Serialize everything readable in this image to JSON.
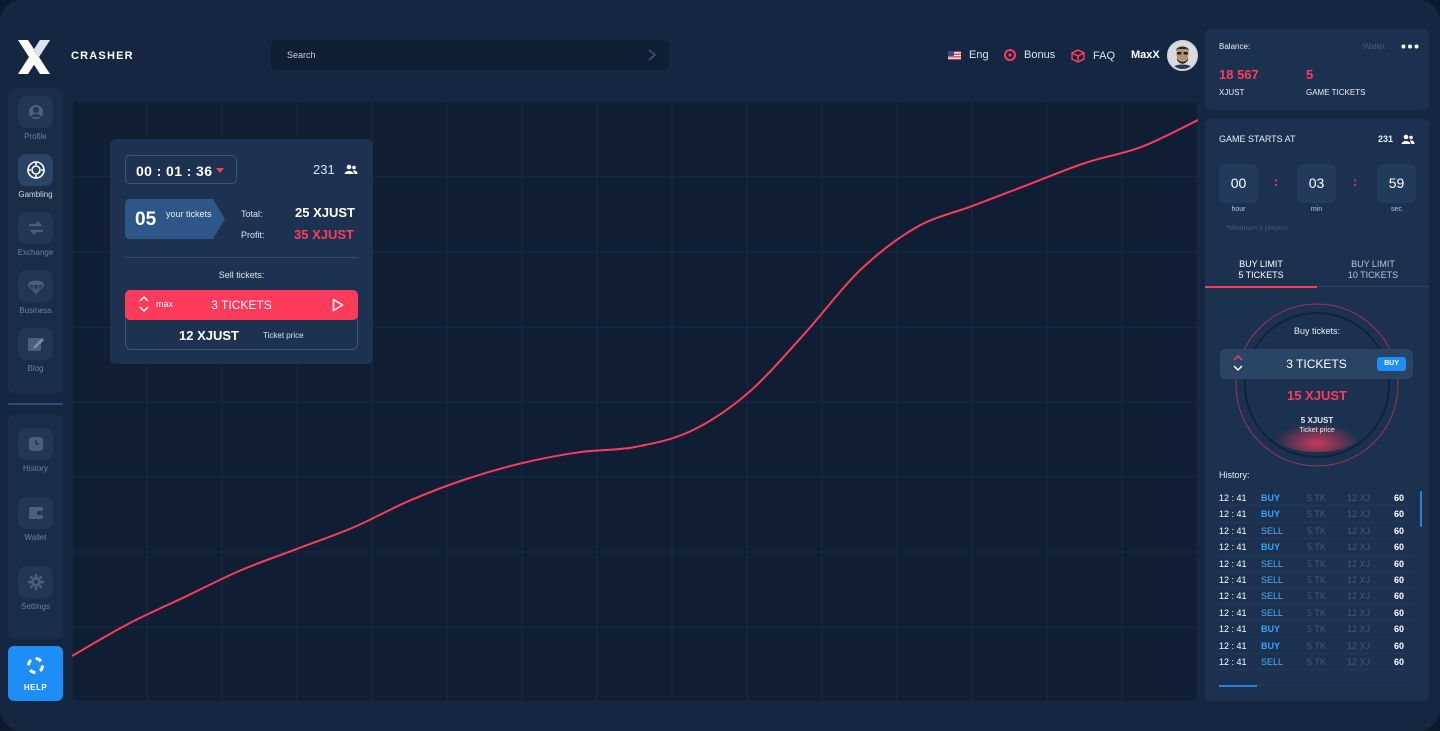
{
  "app": {
    "brand": "CRASHER",
    "accent": "#ff3b5c",
    "blue": "#1e8ef7"
  },
  "sidebar": {
    "items": [
      {
        "label": "Profile",
        "icon": "user-icon"
      },
      {
        "label": "Gambling",
        "icon": "poker-chip-icon"
      },
      {
        "label": "Exchange",
        "icon": "exchange-icon"
      },
      {
        "label": "Business",
        "icon": "parachute-icon"
      },
      {
        "label": "Blog",
        "icon": "edit-icon"
      },
      {
        "label": "History",
        "icon": "clock-icon"
      },
      {
        "label": "Wallet",
        "icon": "wallet-icon"
      },
      {
        "label": "Settings",
        "icon": "gear-icon"
      }
    ],
    "active": "Gambling",
    "help_label": "HELP"
  },
  "header": {
    "search_placeholder": "Search",
    "lang": "Eng",
    "bonus": "Bonus",
    "faq": "FAQ",
    "username": "MaxX"
  },
  "ticket_card": {
    "timer": "00 : 01 : 36",
    "players": "231",
    "your_tickets_count": "05",
    "your_tickets_label": "your tickets",
    "total_label": "Total:",
    "total_value": "25 XJUST",
    "profit_label": "Profit:",
    "profit_value": "35 XJUST",
    "sell_label": "Sell tickets:",
    "max_label": "max",
    "sell_quantity": "3 TICKETS",
    "price": "12 XJUST",
    "price_label": "Ticket price"
  },
  "balance": {
    "label": "Balance:",
    "wallet_link": "Wallet",
    "xjust_value": "18 567",
    "xjust_label": "XJUST",
    "tickets_value": "5",
    "tickets_label": "GAME TICKETS"
  },
  "game": {
    "starts_label": "GAME STARTS AT",
    "players": "231",
    "hour": "00",
    "hour_label": "hour",
    "min": "03",
    "min_label": "min",
    "sec": "59",
    "sec_label": "sec",
    "min_players": "*Minimum 8 players",
    "tab1_line1": "BUY LIMIT",
    "tab1_line2": "5 TICKETS",
    "tab2_line1": "BUY LIMIT",
    "tab2_line2": "10 TICKETS",
    "buy_label": "Buy tickets:",
    "buy_quantity": "3 TICKETS",
    "buy_button": "BUY",
    "buy_total": "15 XJUST",
    "ticket_price": "5 XJUST",
    "ticket_price_label": "Ticket price",
    "history_label": "History:"
  },
  "history": [
    {
      "time": "12 : 41",
      "type": "BUY",
      "tk": "5 TK",
      "xj": "12 XJ",
      "val": "60"
    },
    {
      "time": "12 : 41",
      "type": "BUY",
      "tk": "5 TK",
      "xj": "12 XJ",
      "val": "60"
    },
    {
      "time": "12 : 41",
      "type": "SELL",
      "tk": "5 TK",
      "xj": "12 XJ",
      "val": "60"
    },
    {
      "time": "12 : 41",
      "type": "BUY",
      "tk": "5 TK",
      "xj": "12 XJ",
      "val": "60"
    },
    {
      "time": "12 : 41",
      "type": "SELL",
      "tk": "5 TK",
      "xj": "12 XJ",
      "val": "60"
    },
    {
      "time": "12 : 41",
      "type": "SELL",
      "tk": "5 TK",
      "xj": "12 XJ",
      "val": "60"
    },
    {
      "time": "12 : 41",
      "type": "SELL",
      "tk": "5 TK",
      "xj": "12 XJ",
      "val": "60"
    },
    {
      "time": "12 : 41",
      "type": "SELL",
      "tk": "5 TK",
      "xj": "12 XJ",
      "val": "60"
    },
    {
      "time": "12 : 41",
      "type": "BUY",
      "tk": "5 TK",
      "xj": "12 XJ",
      "val": "60"
    },
    {
      "time": "12 : 41",
      "type": "BUY",
      "tk": "5 TK",
      "xj": "12 XJ",
      "val": "60"
    },
    {
      "time": "12 : 41",
      "type": "SELL",
      "tk": "5 TK",
      "xj": "12 XJ",
      "val": "60"
    }
  ],
  "chart_data": {
    "type": "line",
    "grid": true,
    "series": [
      {
        "color": "#ff3b5c",
        "x": [
          0,
          5,
          10,
          15,
          20,
          25,
          30,
          35,
          40,
          45,
          50,
          55,
          60,
          65,
          70,
          75,
          80,
          85,
          90,
          95,
          100
        ],
        "y": [
          0,
          6,
          11,
          16,
          20,
          24,
          29,
          33,
          36,
          38,
          39,
          42,
          49,
          60,
          72,
          80,
          84,
          88,
          92,
          95,
          100
        ]
      }
    ]
  }
}
